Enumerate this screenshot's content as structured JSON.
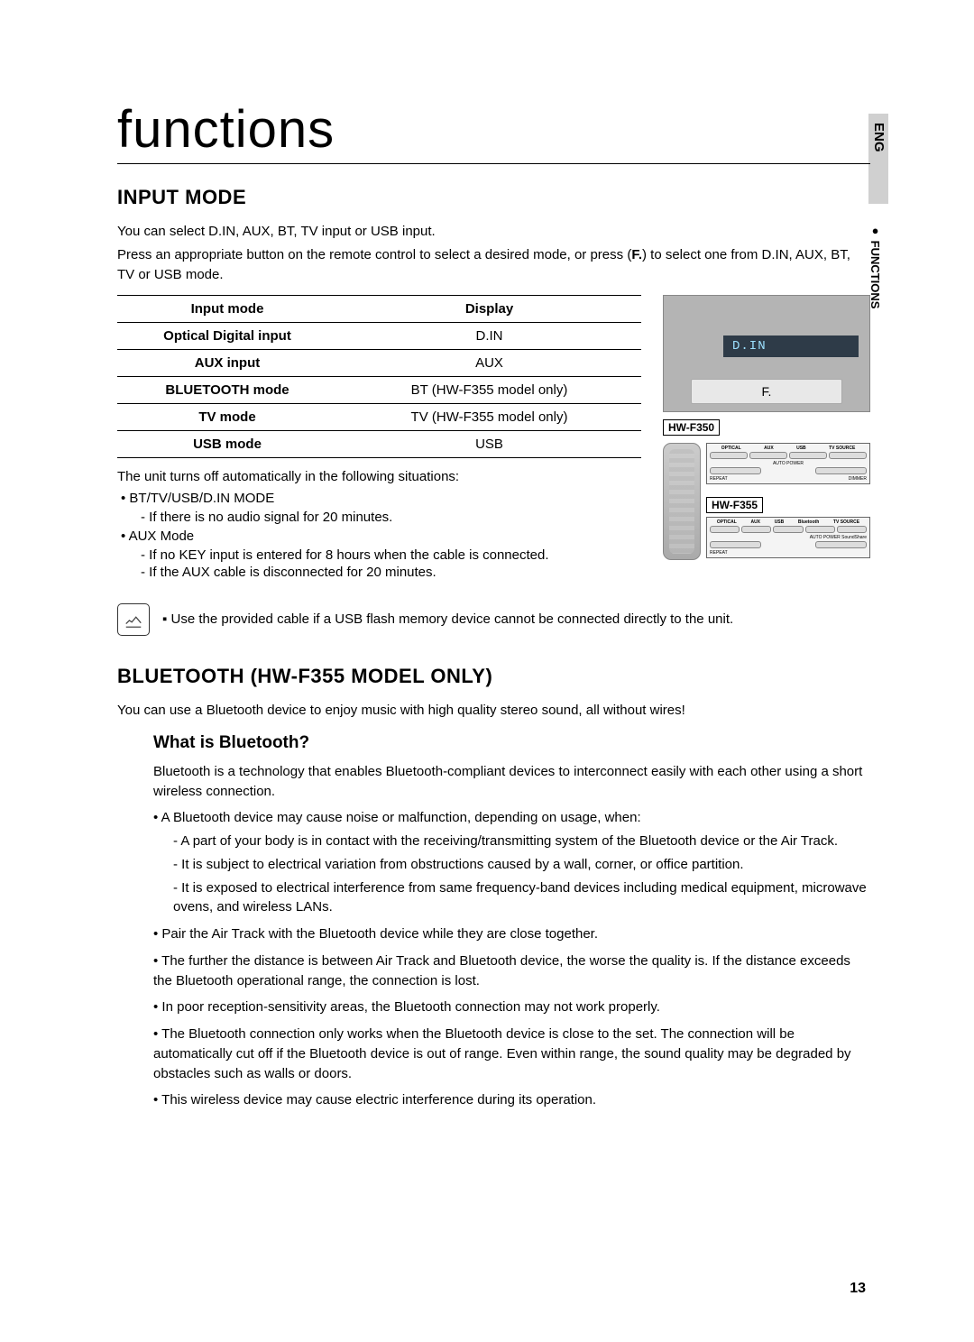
{
  "page": {
    "title": "functions",
    "number": "13"
  },
  "side": {
    "lang": "ENG",
    "section": "FUNCTIONS"
  },
  "input_mode": {
    "heading": "INPUT MODE",
    "intro1": "You can select D.IN, AUX, BT, TV input or USB input.",
    "intro2_a": "Press an appropriate button on the remote control to select a desired mode, or press (",
    "intro2_b": "F.",
    "intro2_c": ") to select one from D.IN, AUX, BT, TV or USB mode.",
    "table": {
      "head1": "Input mode",
      "head2": "Display",
      "rows": [
        {
          "mode": "Optical Digital input",
          "display": "D.IN"
        },
        {
          "mode": "AUX input",
          "display": "AUX"
        },
        {
          "mode": "BLUETOOTH mode",
          "display": "BT (HW-F355 model only)"
        },
        {
          "mode": "TV mode",
          "display": "TV (HW-F355 model only)"
        },
        {
          "mode": "USB mode",
          "display": "USB"
        }
      ]
    },
    "auto_off_intro": "The unit turns off automatically in the following situations:",
    "auto_off": [
      {
        "label": "BT/TV/USB/D.IN MODE",
        "subs": [
          "If there is no audio signal for 20 minutes."
        ]
      },
      {
        "label": "AUX Mode",
        "subs": [
          "If no KEY input is entered for 8 hours when the cable is connected.",
          "If the AUX cable is disconnected for 20 minutes."
        ]
      }
    ],
    "note": "Use the provided cable if a USB flash memory device cannot be connected directly to the unit."
  },
  "device": {
    "display_text": "D.IN",
    "button_label": "F.",
    "model1": "HW-F350",
    "model2": "HW-F355",
    "panel_labels": [
      "OPTICAL",
      "AUX",
      "USB",
      "TV SOURCE"
    ],
    "panel_sub1a": "REPEAT",
    "panel_sub1b": "AUTO POWER",
    "panel_sub1c": "DIMMER",
    "panel2_labels": [
      "OPTICAL",
      "AUX",
      "USB",
      "Bluetooth",
      "TV SOURCE"
    ],
    "panel2_sub_b": "AUTO POWER SoundShare",
    "panel2_sub_a": "REPEAT"
  },
  "bluetooth": {
    "heading": "BLUETOOTH (HW-F355 MODEL ONLY)",
    "intro": "You can use a Bluetooth device to enjoy music with high quality stereo sound, all without wires!",
    "sub_heading": "What is Bluetooth?",
    "desc": "Bluetooth is a technology that enables Bluetooth-compliant devices to interconnect easily with each other using a short wireless connection.",
    "b1_lead": "A Bluetooth device may cause noise or malfunction, depending on usage, when:",
    "b1_subs": [
      "A part of your body is in contact with the receiving/transmitting system of the Bluetooth device or the Air Track.",
      "It is subject to electrical variation from obstructions caused by a wall, corner, or office partition.",
      "It is exposed to electrical interference from same frequency-band devices including medical equipment, microwave ovens, and wireless LANs."
    ],
    "b2": "Pair the Air Track with the Bluetooth device while they are close together.",
    "b3": "The further the distance is between Air Track and Bluetooth device, the worse the quality is. If the distance exceeds the Bluetooth operational range, the connection is lost.",
    "b4": "In poor reception-sensitivity areas, the Bluetooth connection may not work properly.",
    "b5": "The Bluetooth connection only works when the Bluetooth device is close to the set. The connection will be automatically cut off if the Bluetooth device is out of range. Even within range, the sound quality may be degraded by obstacles such as walls or doors.",
    "b6": "This wireless device may cause electric interference during its operation."
  },
  "colors": {
    "tab_bg": "#d0d0d0",
    "device_bg": "#b4b4b4",
    "display_bg": "#2e3b48",
    "display_fg": "#9ce0ff"
  }
}
